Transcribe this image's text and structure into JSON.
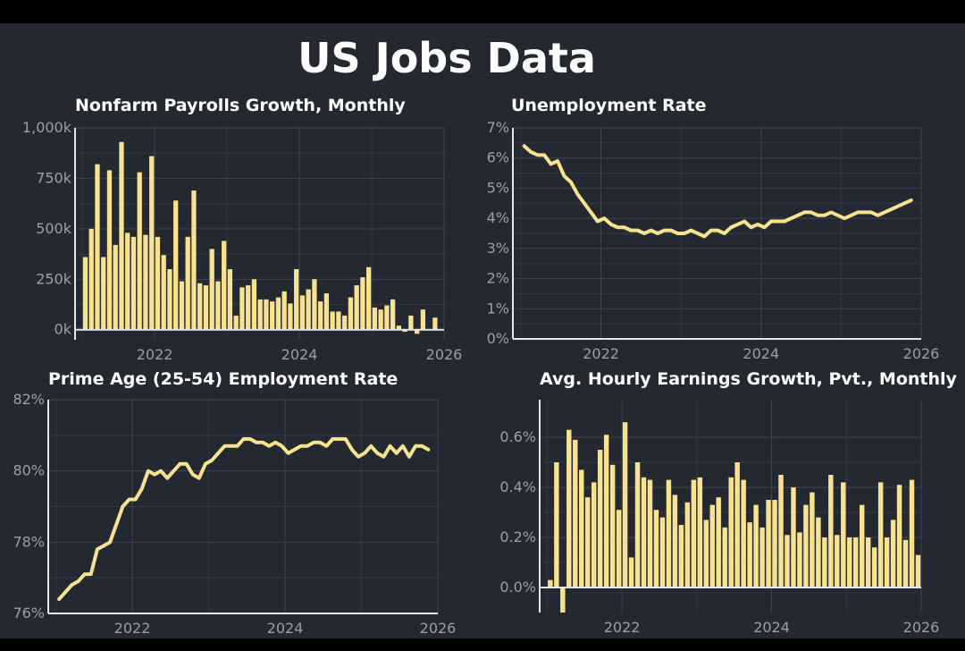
{
  "title": "US Jobs Data",
  "colors": {
    "background": "#232831",
    "series": "#f9e28f",
    "text": "#ffffff",
    "tick": "#9aa0a8"
  },
  "chart_data": [
    {
      "type": "bar",
      "title": "Nonfarm Payrolls Growth, Monthly",
      "xlabel": "",
      "ylabel": "",
      "xlim": [
        2020.9,
        2026.0
      ],
      "ylim": [
        -50,
        1000
      ],
      "x_ticks": [
        2022,
        2024,
        2026
      ],
      "x_tick_labels": [
        "2022",
        "2024",
        "2026"
      ],
      "y_ticks": [
        0,
        250,
        500,
        750,
        1000
      ],
      "y_tick_labels": [
        "0k",
        "250k",
        "500k",
        "750k",
        "1,000k"
      ],
      "x_start": "2021-01",
      "values": [
        360,
        500,
        820,
        360,
        790,
        420,
        930,
        480,
        460,
        780,
        470,
        860,
        460,
        370,
        300,
        640,
        240,
        460,
        690,
        230,
        220,
        400,
        240,
        440,
        300,
        70,
        210,
        220,
        250,
        150,
        150,
        140,
        160,
        190,
        130,
        300,
        170,
        200,
        250,
        140,
        180,
        90,
        90,
        70,
        160,
        220,
        260,
        310,
        110,
        100,
        120,
        150,
        20,
        -10,
        70,
        -20,
        100,
        0,
        60
      ]
    },
    {
      "type": "line",
      "title": "Unemployment Rate",
      "xlabel": "",
      "ylabel": "",
      "xlim": [
        2020.9,
        2026.0
      ],
      "ylim": [
        0,
        7
      ],
      "x_ticks": [
        2022,
        2024,
        2026
      ],
      "x_tick_labels": [
        "2022",
        "2024",
        "2026"
      ],
      "y_ticks": [
        0,
        1,
        2,
        3,
        4,
        5,
        6,
        7
      ],
      "y_tick_labels": [
        "0%",
        "1%",
        "2%",
        "3%",
        "4%",
        "5%",
        "6%",
        "7%"
      ],
      "x_start": "2021-01",
      "values": [
        6.4,
        6.2,
        6.1,
        6.1,
        5.8,
        5.9,
        5.4,
        5.2,
        4.8,
        4.5,
        4.2,
        3.9,
        4.0,
        3.8,
        3.7,
        3.7,
        3.6,
        3.6,
        3.5,
        3.6,
        3.5,
        3.6,
        3.6,
        3.5,
        3.5,
        3.6,
        3.5,
        3.4,
        3.6,
        3.6,
        3.5,
        3.7,
        3.8,
        3.9,
        3.7,
        3.8,
        3.7,
        3.9,
        3.9,
        3.9,
        4.0,
        4.1,
        4.2,
        4.2,
        4.1,
        4.1,
        4.2,
        4.1,
        4.0,
        4.1,
        4.2,
        4.2,
        4.2,
        4.1,
        4.2,
        4.3,
        4.4,
        4.5,
        4.6
      ]
    },
    {
      "type": "line",
      "title": "Prime Age (25-54) Employment Rate",
      "xlabel": "",
      "ylabel": "",
      "xlim": [
        2020.9,
        2026.0
      ],
      "ylim": [
        76,
        82
      ],
      "x_ticks": [
        2022,
        2024,
        2026
      ],
      "x_tick_labels": [
        "2022",
        "2024",
        "2026"
      ],
      "y_ticks": [
        76,
        78,
        80,
        82
      ],
      "y_tick_labels": [
        "76%",
        "78%",
        "80%",
        "82%"
      ],
      "x_start": "2021-01",
      "values": [
        76.4,
        76.6,
        76.8,
        76.9,
        77.1,
        77.1,
        77.8,
        77.9,
        78.0,
        78.5,
        79.0,
        79.2,
        79.2,
        79.5,
        80.0,
        79.9,
        80.0,
        79.8,
        80.0,
        80.2,
        80.2,
        79.9,
        79.8,
        80.2,
        80.3,
        80.5,
        80.7,
        80.7,
        80.7,
        80.9,
        80.9,
        80.8,
        80.8,
        80.7,
        80.8,
        80.7,
        80.5,
        80.6,
        80.7,
        80.7,
        80.8,
        80.8,
        80.7,
        80.9,
        80.9,
        80.9,
        80.6,
        80.4,
        80.5,
        80.7,
        80.5,
        80.4,
        80.7,
        80.5,
        80.7,
        80.4,
        80.7,
        80.7,
        80.6
      ]
    },
    {
      "type": "bar",
      "title": "Avg. Hourly Earnings Growth, Pvt., Monthly",
      "xlabel": "",
      "ylabel": "",
      "xlim": [
        2020.9,
        2026.0
      ],
      "ylim": [
        -0.1,
        0.75
      ],
      "x_ticks": [
        2022,
        2024,
        2026
      ],
      "x_tick_labels": [
        "2022",
        "2024",
        "2026"
      ],
      "y_ticks": [
        0,
        0.2,
        0.4,
        0.6
      ],
      "y_tick_labels": [
        "0.0%",
        "0.2%",
        "0.4%",
        "0.6%"
      ],
      "x_start": "2021-01",
      "values": [
        0.03,
        0.5,
        -0.1,
        0.63,
        0.59,
        0.47,
        0.36,
        0.42,
        0.55,
        0.61,
        0.49,
        0.31,
        0.66,
        0.12,
        0.5,
        0.44,
        0.43,
        0.31,
        0.28,
        0.43,
        0.37,
        0.25,
        0.34,
        0.43,
        0.44,
        0.27,
        0.33,
        0.36,
        0.24,
        0.44,
        0.5,
        0.43,
        0.26,
        0.33,
        0.24,
        0.35,
        0.35,
        0.45,
        0.21,
        0.4,
        0.22,
        0.33,
        0.38,
        0.28,
        0.2,
        0.45,
        0.21,
        0.42,
        0.2,
        0.2,
        0.33,
        0.2,
        0.16,
        0.42,
        0.2,
        0.27,
        0.41,
        0.19,
        0.43,
        0.13
      ]
    }
  ],
  "panels_layout_note": ""
}
